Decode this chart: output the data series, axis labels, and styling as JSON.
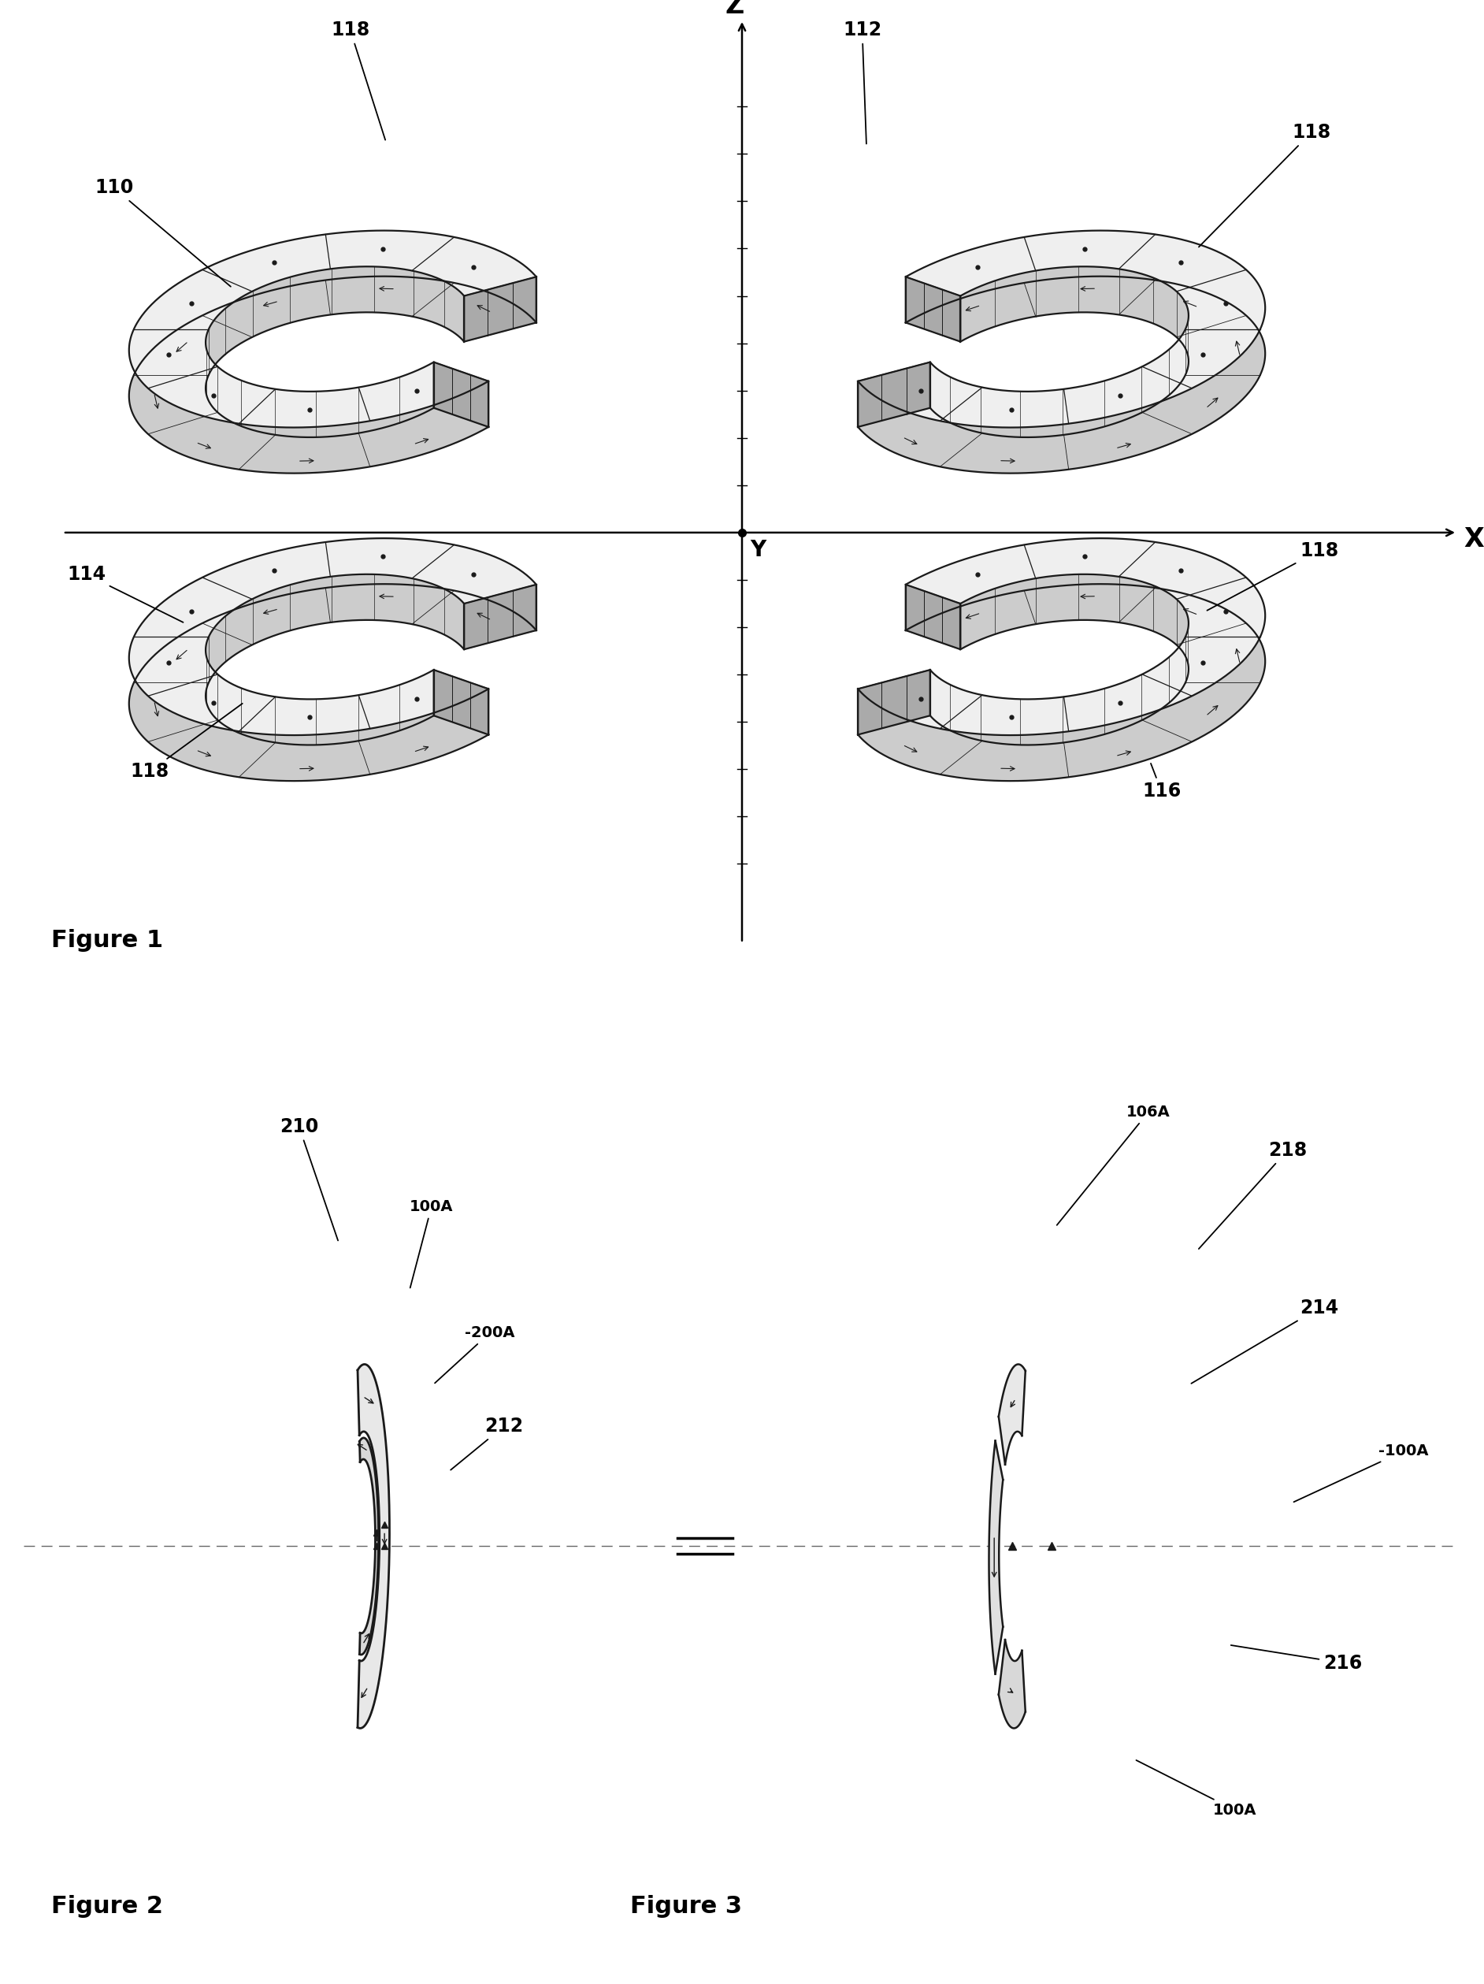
{
  "fig_width": 18.84,
  "fig_height": 25.18,
  "bg_color": "#ffffff",
  "line_color": "#1a1a1a",
  "figure1_caption": "Figure 1",
  "figure2_caption": "Figure 2",
  "figure3_caption": "Figure 3",
  "coil_fill_side": "#d8d8d8",
  "coil_fill_top": "#f0f0f0",
  "coil_fill_cap": "#b0b0b0"
}
